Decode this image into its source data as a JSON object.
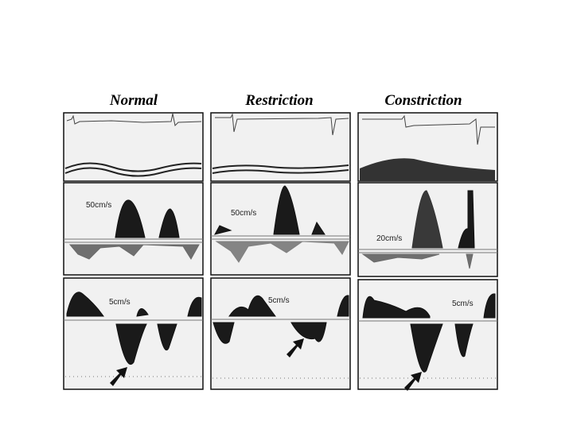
{
  "columns": [
    {
      "title": "Normal",
      "labels": [
        "50cm/s",
        "5cm/s"
      ]
    },
    {
      "title": "Restriction",
      "labels": [
        "50cm/s",
        "5cm/s"
      ]
    },
    {
      "title": "Constriction",
      "labels": [
        "20cm/s",
        "5cm/s"
      ]
    }
  ]
}
